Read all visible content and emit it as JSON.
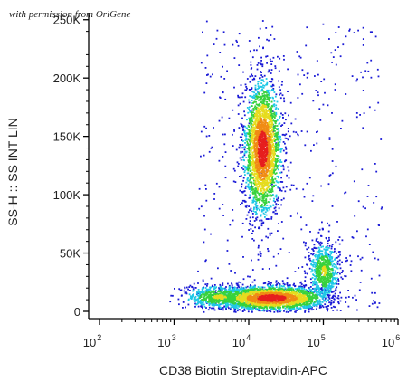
{
  "watermark": "with permission from OriGene",
  "chart_data": {
    "type": "scatter",
    "subtype": "flow-cytometry-density-dot-plot",
    "title": "",
    "xlabel": "CD38 Biotin Streptavidin-APC",
    "ylabel": "SS-H :: SS INT LIN",
    "x_scale": "log",
    "xlim": [
      100,
      1000000
    ],
    "ylim": [
      0,
      256000
    ],
    "x_ticks": [
      {
        "value": 100,
        "base": "10",
        "exp": "2"
      },
      {
        "value": 1000,
        "base": "10",
        "exp": "3"
      },
      {
        "value": 10000,
        "base": "10",
        "exp": "4"
      },
      {
        "value": 100000,
        "base": "10",
        "exp": "5"
      },
      {
        "value": 1000000,
        "base": "10",
        "exp": "6"
      }
    ],
    "y_ticks": [
      {
        "value": 0,
        "label": "0"
      },
      {
        "value": 50000,
        "label": "50K"
      },
      {
        "value": 100000,
        "label": "100K"
      },
      {
        "value": 150000,
        "label": "150K"
      },
      {
        "value": 200000,
        "label": "200K"
      },
      {
        "value": 250000,
        "label": "250K"
      }
    ],
    "grid": false,
    "density_colors": [
      "#1a1ad6",
      "#1ec8e6",
      "#37d23c",
      "#e6dc1e",
      "#f08c14",
      "#e61e1e"
    ],
    "populations": [
      {
        "id": "lymphocytes",
        "x_center": 15000,
        "x_spread_decades": 0.12,
        "y_center": 140000,
        "y_spread": 28000,
        "density": "high"
      },
      {
        "id": "low-ss-band-main",
        "x_center": 20000,
        "x_spread_decades": 0.35,
        "y_center": 12000,
        "y_spread": 5000,
        "density": "high"
      },
      {
        "id": "low-ss-band-dim",
        "x_center": 4000,
        "x_spread_decades": 0.25,
        "y_center": 13000,
        "y_spread": 5000,
        "density": "medium"
      },
      {
        "id": "cd38-bright",
        "x_center": 100000,
        "x_spread_decades": 0.1,
        "y_center": 35000,
        "y_spread": 12000,
        "density": "medium"
      },
      {
        "id": "background-scatter",
        "x_range": [
          2000,
          600000
        ],
        "y_range": [
          0,
          250000
        ],
        "density": "sparse"
      }
    ]
  }
}
